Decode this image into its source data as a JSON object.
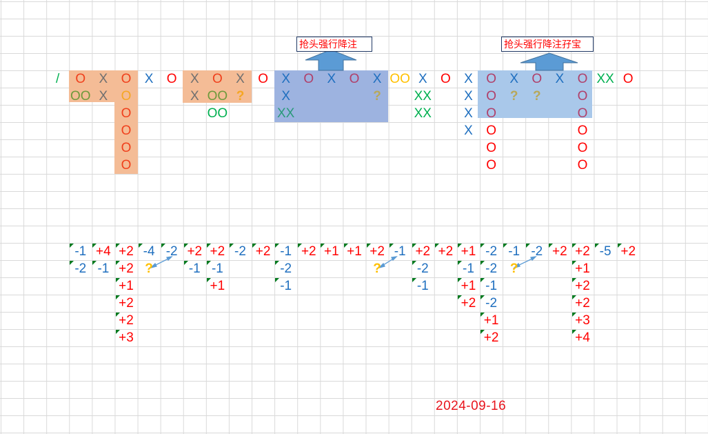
{
  "palette": {
    "R": "#ff0000",
    "RO": "#f0401c",
    "G": "#707070",
    "B": "#1f6fbf",
    "M": "#b0406a",
    "OR": "#f5a623",
    "GO": "#ffc000",
    "OL": "#6f9a3c",
    "GR": "#00b050",
    "TE": "#2a9a7a",
    "KH": "#b8a85a",
    "plus": "#ff0000",
    "minus": "#1f6fbf",
    "question": "#ffc000",
    "marker": "#007a1e",
    "shade_orange": "#f4bc96",
    "shade_blue": "#9db3e0",
    "shade_lightblue": "#a9c8ea",
    "arrow": "#5b9bd5"
  },
  "callouts": [
    "抢头强行降注",
    "抢头强行降注孖宝"
  ],
  "symbol_rows": [
    {
      "text": [
        "/",
        "O",
        "X",
        "O",
        "X",
        "O",
        "X",
        "O",
        "X",
        "O",
        "X",
        "O",
        "X",
        "O",
        "X",
        "OO",
        "X",
        "O",
        "X",
        "O",
        "X",
        "O",
        "X",
        "O",
        "XX",
        "O"
      ],
      "colors": [
        "GR",
        "RO",
        "G",
        "RO",
        "B",
        "R",
        "G",
        "RO",
        "G",
        "R",
        "B",
        "M",
        "B",
        "M",
        "B",
        "GO",
        "B",
        "R",
        "B",
        "M",
        "B",
        "M",
        "B",
        "M",
        "GR",
        "R"
      ]
    },
    {
      "text": [
        "",
        "OO",
        "X",
        "O",
        "",
        "",
        "X",
        "OO",
        "?",
        "",
        "X",
        "",
        "",
        "",
        "?",
        "",
        "XX",
        "",
        "X",
        "O",
        "?",
        "?",
        "",
        "O",
        "",
        ""
      ],
      "colors": [
        "",
        "OL",
        "G",
        "OR",
        "",
        "",
        "G",
        "OL",
        "OR",
        "",
        "B",
        "",
        "",
        "",
        "KH",
        "",
        "GR",
        "",
        "B",
        "M",
        "KH",
        "KH",
        "",
        "M",
        "",
        ""
      ]
    },
    {
      "text": [
        "",
        "",
        "",
        "O",
        "",
        "",
        "",
        "OO",
        "",
        "",
        "XX",
        "",
        "",
        "",
        "",
        "",
        "XX",
        "",
        "X",
        "O",
        "",
        "",
        "",
        "O",
        "",
        ""
      ],
      "colors": [
        "",
        "",
        "",
        "RO",
        "",
        "",
        "",
        "GR",
        "",
        "",
        "TE",
        "",
        "",
        "",
        "",
        "",
        "GR",
        "",
        "B",
        "M",
        "",
        "",
        "",
        "M",
        "",
        ""
      ]
    },
    {
      "text": [
        "",
        "",
        "",
        "O",
        "",
        "",
        "",
        "",
        "",
        "",
        "",
        "",
        "",
        "",
        "",
        "",
        "",
        "",
        "X",
        "O",
        "",
        "",
        "",
        "O",
        "",
        ""
      ],
      "colors": [
        "",
        "",
        "",
        "RO",
        "",
        "",
        "",
        "",
        "",
        "",
        "",
        "",
        "",
        "",
        "",
        "",
        "",
        "",
        "B",
        "R",
        "",
        "",
        "",
        "R",
        "",
        ""
      ]
    },
    {
      "text": [
        "",
        "",
        "",
        "O",
        "",
        "",
        "",
        "",
        "",
        "",
        "",
        "",
        "",
        "",
        "",
        "",
        "",
        "",
        "",
        "O",
        "",
        "",
        "",
        "O",
        "",
        ""
      ],
      "colors": [
        "",
        "",
        "",
        "RO",
        "",
        "",
        "",
        "",
        "",
        "",
        "",
        "",
        "",
        "",
        "",
        "",
        "",
        "",
        "",
        "R",
        "",
        "",
        "",
        "R",
        "",
        ""
      ]
    },
    {
      "text": [
        "",
        "",
        "",
        "O",
        "",
        "",
        "",
        "",
        "",
        "",
        "",
        "",
        "",
        "",
        "",
        "",
        "",
        "",
        "",
        "O",
        "",
        "",
        "",
        "O",
        "",
        ""
      ],
      "colors": [
        "",
        "",
        "",
        "RO",
        "",
        "",
        "",
        "",
        "",
        "",
        "",
        "",
        "",
        "",
        "",
        "",
        "",
        "",
        "",
        "R",
        "",
        "",
        "",
        "R",
        "",
        ""
      ]
    }
  ],
  "number_rows": [
    [
      "-1",
      "+4",
      "+2",
      "-4",
      "-2",
      "+2",
      "+2",
      "-2",
      "+2",
      "-1",
      "+2",
      "+1",
      "+1",
      "+2",
      "-1",
      "+2",
      "+2",
      "+1",
      "-2",
      "-1",
      "-2",
      "+2",
      "+2",
      "-5",
      "+2"
    ],
    [
      "-2",
      "-1",
      "+2",
      "?",
      "",
      "-1",
      "-1",
      "",
      "",
      "-2",
      "",
      "",
      "",
      "?",
      "",
      "-2",
      "",
      "-1",
      "-2",
      "?",
      "",
      "",
      "+1",
      "",
      ""
    ],
    [
      "",
      "",
      "+1",
      "",
      "",
      "",
      "+1",
      "",
      "",
      "-1",
      "",
      "",
      "",
      "",
      "",
      "-1",
      "",
      "+1",
      "-1",
      "",
      "",
      "",
      "+2",
      "",
      ""
    ],
    [
      "",
      "",
      "+2",
      "",
      "",
      "",
      "",
      "",
      "",
      "",
      "",
      "",
      "",
      "",
      "",
      "",
      "",
      "+2",
      "-2",
      "",
      "",
      "",
      "+2",
      "",
      ""
    ],
    [
      "",
      "",
      "+2",
      "",
      "",
      "",
      "",
      "",
      "",
      "",
      "",
      "",
      "",
      "",
      "",
      "",
      "",
      "",
      "+1",
      "",
      "",
      "",
      "+3",
      "",
      ""
    ],
    [
      "",
      "",
      "+3",
      "",
      "",
      "",
      "",
      "",
      "",
      "",
      "",
      "",
      "",
      "",
      "",
      "",
      "",
      "",
      "+2",
      "",
      "",
      "",
      "+4",
      "",
      ""
    ]
  ],
  "date": "2024-09-16"
}
